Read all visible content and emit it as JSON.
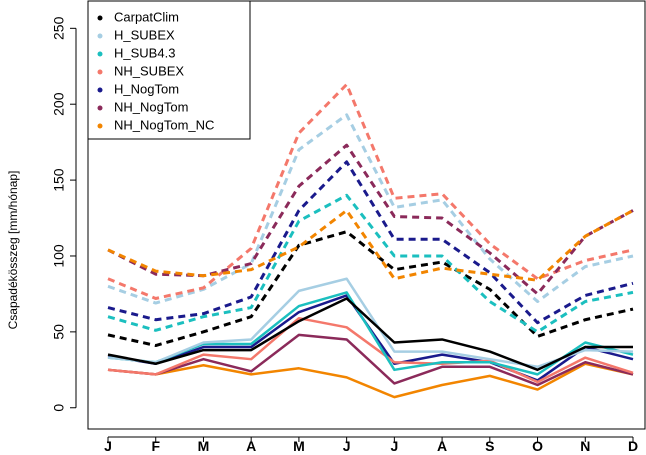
{
  "chart_data": {
    "type": "line",
    "y_label": "Csapadékösszeg [mm/hónap]",
    "categories": [
      "J",
      "F",
      "M",
      "A",
      "M",
      "J",
      "J",
      "A",
      "S",
      "O",
      "N",
      "D"
    ],
    "ylim": [
      -14,
      268
    ],
    "yticks": [
      0,
      50,
      100,
      150,
      200,
      250
    ],
    "legend": "topleft",
    "series": [
      {
        "name": "CarpatClim",
        "color": "#000000",
        "values": [
          35,
          29,
          38,
          38,
          57,
          72,
          43,
          45,
          37,
          25,
          40,
          40
        ],
        "dashed_values": [
          48,
          41,
          50,
          60,
          107,
          116,
          91,
          96,
          78,
          47,
          58,
          65
        ]
      },
      {
        "name": "H_SUBEX",
        "color": "#a6cee3",
        "values": [
          33,
          30,
          43,
          45,
          77,
          85,
          37,
          37,
          32,
          27,
          38,
          37
        ],
        "dashed_values": [
          80,
          69,
          78,
          95,
          170,
          193,
          132,
          137,
          98,
          70,
          93,
          100
        ]
      },
      {
        "name": "H_SUB4.3",
        "color": "#1bbfbf",
        "values": [
          33,
          30,
          42,
          42,
          67,
          76,
          25,
          30,
          30,
          22,
          43,
          35
        ],
        "dashed_values": [
          60,
          51,
          60,
          66,
          123,
          140,
          100,
          100,
          70,
          50,
          70,
          76
        ]
      },
      {
        "name": "NH_SUBEX",
        "color": "#f4786b",
        "values": [
          25,
          22,
          35,
          32,
          59,
          53,
          30,
          29,
          31,
          17,
          33,
          23
        ],
        "dashed_values": [
          85,
          72,
          79,
          105,
          181,
          213,
          138,
          141,
          108,
          85,
          97,
          104
        ]
      },
      {
        "name": "H_NogTom",
        "color": "#1a1a8c",
        "values": [
          34,
          29,
          40,
          40,
          63,
          74,
          29,
          35,
          30,
          18,
          40,
          32
        ],
        "dashed_values": [
          66,
          58,
          62,
          73,
          130,
          162,
          111,
          111,
          89,
          56,
          74,
          82
        ]
      },
      {
        "name": "NH_NogTom",
        "color": "#8b2a5a",
        "values": [
          25,
          22,
          32,
          24,
          48,
          45,
          16,
          27,
          27,
          15,
          30,
          22
        ],
        "dashed_values": [
          104,
          88,
          87,
          95,
          146,
          173,
          126,
          125,
          102,
          75,
          113,
          130
        ]
      },
      {
        "name": "NH_NogTom_NC",
        "color": "#f28500",
        "values": [
          25,
          22,
          28,
          22,
          26,
          20,
          7,
          15,
          21,
          12,
          29,
          22
        ],
        "dashed_values": [
          104,
          90,
          87,
          91,
          106,
          130,
          85,
          92,
          88,
          84,
          113,
          130
        ]
      }
    ]
  }
}
